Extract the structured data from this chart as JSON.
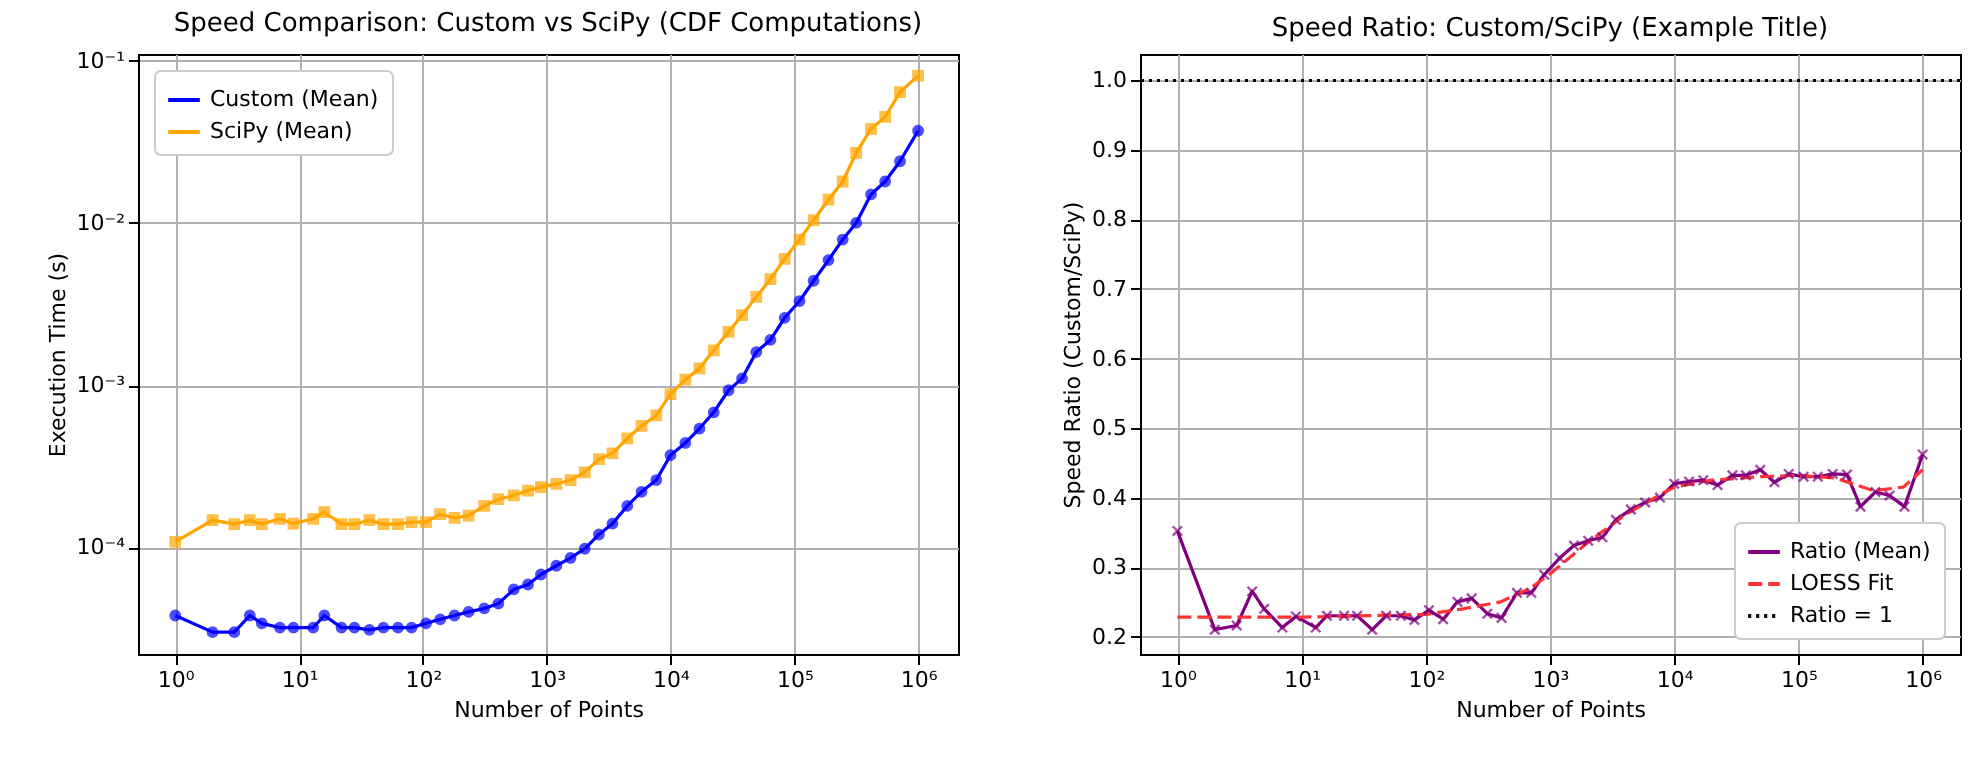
{
  "chart_data": [
    {
      "type": "line",
      "title": "Speed Comparison: Custom vs SciPy (CDF Computations)",
      "xlabel": "Number of Points",
      "ylabel": "Execution Time (s)",
      "x": [
        1,
        2,
        3,
        4,
        5,
        7,
        9,
        13,
        16,
        22,
        28,
        37,
        48,
        63,
        81,
        106,
        138,
        180,
        234,
        313,
        407,
        542,
        707,
        898,
        1197,
        1559,
        2030,
        2642,
        3398,
        4477,
        5834,
        7680,
        10000,
        13180,
        17140,
        22340,
        29440,
        37850,
        49320,
        64120,
        83570,
        110200,
        143300,
        188800,
        246000,
        316200,
        416900,
        542000,
        714500,
        1000000
      ],
      "series": [
        {
          "name": "Custom (Mean)",
          "color": "#0000ff",
          "marker": "circle",
          "values": [
            3.8e-05,
            3e-05,
            3e-05,
            3.8e-05,
            3.4e-05,
            3.2e-05,
            3.2e-05,
            3.2e-05,
            3.8e-05,
            3.2e-05,
            3.2e-05,
            3.1e-05,
            3.2e-05,
            3.2e-05,
            3.2e-05,
            3.4e-05,
            3.6e-05,
            3.8e-05,
            4e-05,
            4.2e-05,
            4.5e-05,
            5.5e-05,
            5.9e-05,
            6.8e-05,
            7.7e-05,
            8.6e-05,
            9.8e-05,
            0.00012,
            0.00014,
            0.00018,
            0.00022,
            0.00026,
            0.00037,
            0.00044,
            0.00054,
            0.00068,
            0.00093,
            0.0011,
            0.0016,
            0.0019,
            0.0026,
            0.0033,
            0.0044,
            0.0059,
            0.0079,
            0.01,
            0.015,
            0.018,
            0.024,
            0.037
          ]
        },
        {
          "name": "SciPy (Mean)",
          "color": "#ffa500",
          "marker": "square",
          "values": [
            0.000108,
            0.000147,
            0.000139,
            0.000147,
            0.000139,
            0.00015,
            0.00014,
            0.00015,
            0.000165,
            0.000139,
            0.000139,
            0.000147,
            0.000139,
            0.000139,
            0.000143,
            0.000143,
            0.00016,
            0.000152,
            0.000157,
            0.00018,
            0.000198,
            0.000209,
            0.000224,
            0.000235,
            0.000246,
            0.00026,
            0.00029,
            0.00035,
            0.00038,
            0.00047,
            0.00056,
            0.00065,
            0.00088,
            0.00108,
            0.00127,
            0.00164,
            0.00213,
            0.0027,
            0.0035,
            0.0045,
            0.006,
            0.0079,
            0.0104,
            0.0139,
            0.018,
            0.027,
            0.038,
            0.045,
            0.064,
            0.081
          ]
        }
      ],
      "log": "xy",
      "xlim": [
        0.5,
        2100000
      ],
      "ylim": [
        2.2e-05,
        0.11
      ],
      "xticks": [
        {
          "value": 1,
          "label": "10⁰"
        },
        {
          "value": 10,
          "label": "10¹"
        },
        {
          "value": 100,
          "label": "10²"
        },
        {
          "value": 1000,
          "label": "10³"
        },
        {
          "value": 10000,
          "label": "10⁴"
        },
        {
          "value": 100000,
          "label": "10⁵"
        },
        {
          "value": 1000000,
          "label": "10⁶"
        }
      ],
      "yticks": [
        {
          "value": 0.0001,
          "label": "10⁻⁴"
        },
        {
          "value": 0.001,
          "label": "10⁻³"
        },
        {
          "value": 0.01,
          "label": "10⁻²"
        },
        {
          "value": 0.1,
          "label": "10⁻¹"
        }
      ],
      "grid": true,
      "legend": "top left"
    },
    {
      "type": "line",
      "title": "Speed Ratio: Custom/SciPy (Example Title)",
      "xlabel": "Number of Points",
      "ylabel": "Speed Ratio (Custom/SciPy)",
      "x": [
        1,
        2,
        3,
        4,
        5,
        7,
        9,
        13,
        16,
        22,
        28,
        37,
        48,
        63,
        81,
        106,
        138,
        180,
        234,
        313,
        407,
        542,
        707,
        898,
        1197,
        1559,
        2030,
        2642,
        3398,
        4477,
        5834,
        7680,
        10000,
        13180,
        17140,
        22340,
        29440,
        37850,
        49320,
        64120,
        83570,
        110200,
        143300,
        188800,
        246000,
        316200,
        416900,
        542000,
        714500,
        1000000
      ],
      "series": [
        {
          "name": "Ratio (Mean)",
          "color": "#800080",
          "marker": "cross",
          "values": [
            0.352,
            0.21,
            0.216,
            0.265,
            0.24,
            0.213,
            0.229,
            0.213,
            0.23,
            0.23,
            0.23,
            0.21,
            0.23,
            0.23,
            0.224,
            0.238,
            0.225,
            0.25,
            0.255,
            0.233,
            0.227,
            0.263,
            0.263,
            0.289,
            0.313,
            0.331,
            0.338,
            0.343,
            0.368,
            0.383,
            0.393,
            0.4,
            0.42,
            0.423,
            0.425,
            0.418,
            0.432,
            0.432,
            0.44,
            0.422,
            0.434,
            0.43,
            0.43,
            0.434,
            0.433,
            0.387,
            0.408,
            0.403,
            0.387,
            0.462
          ]
        },
        {
          "name": "LOESS Fit",
          "color": "#ff3333",
          "marker": "none",
          "line_style": "dashed",
          "x": [
            1,
            10,
            100,
            200,
            400,
            700,
            1000,
            2000,
            4000,
            7000,
            10000,
            20000,
            50000,
            100000,
            200000,
            400000,
            700000,
            1000000
          ],
          "values": [
            0.228,
            0.228,
            0.232,
            0.24,
            0.25,
            0.27,
            0.29,
            0.335,
            0.375,
            0.4,
            0.415,
            0.425,
            0.43,
            0.432,
            0.428,
            0.41,
            0.415,
            0.44
          ]
        }
      ],
      "ref_lines": [
        {
          "axis": "y",
          "value": 1,
          "label": "Ratio = 1",
          "color": "#000000",
          "line_style": "dotted"
        }
      ],
      "log": "x",
      "xlim": [
        0.5,
        2000000
      ],
      "ylim": [
        0.175,
        1.038
      ],
      "xticks": [
        {
          "value": 1,
          "label": "10⁰"
        },
        {
          "value": 10,
          "label": "10¹"
        },
        {
          "value": 100,
          "label": "10²"
        },
        {
          "value": 1000,
          "label": "10³"
        },
        {
          "value": 10000,
          "label": "10⁴"
        },
        {
          "value": 100000,
          "label": "10⁵"
        },
        {
          "value": 1000000,
          "label": "10⁶"
        }
      ],
      "yticks": [
        0.2,
        0.3,
        0.4,
        0.5,
        0.6,
        0.7,
        0.8,
        0.9,
        {
          "value": 1,
          "label": "1.0"
        }
      ],
      "grid": true,
      "legend": "bottom right"
    }
  ]
}
